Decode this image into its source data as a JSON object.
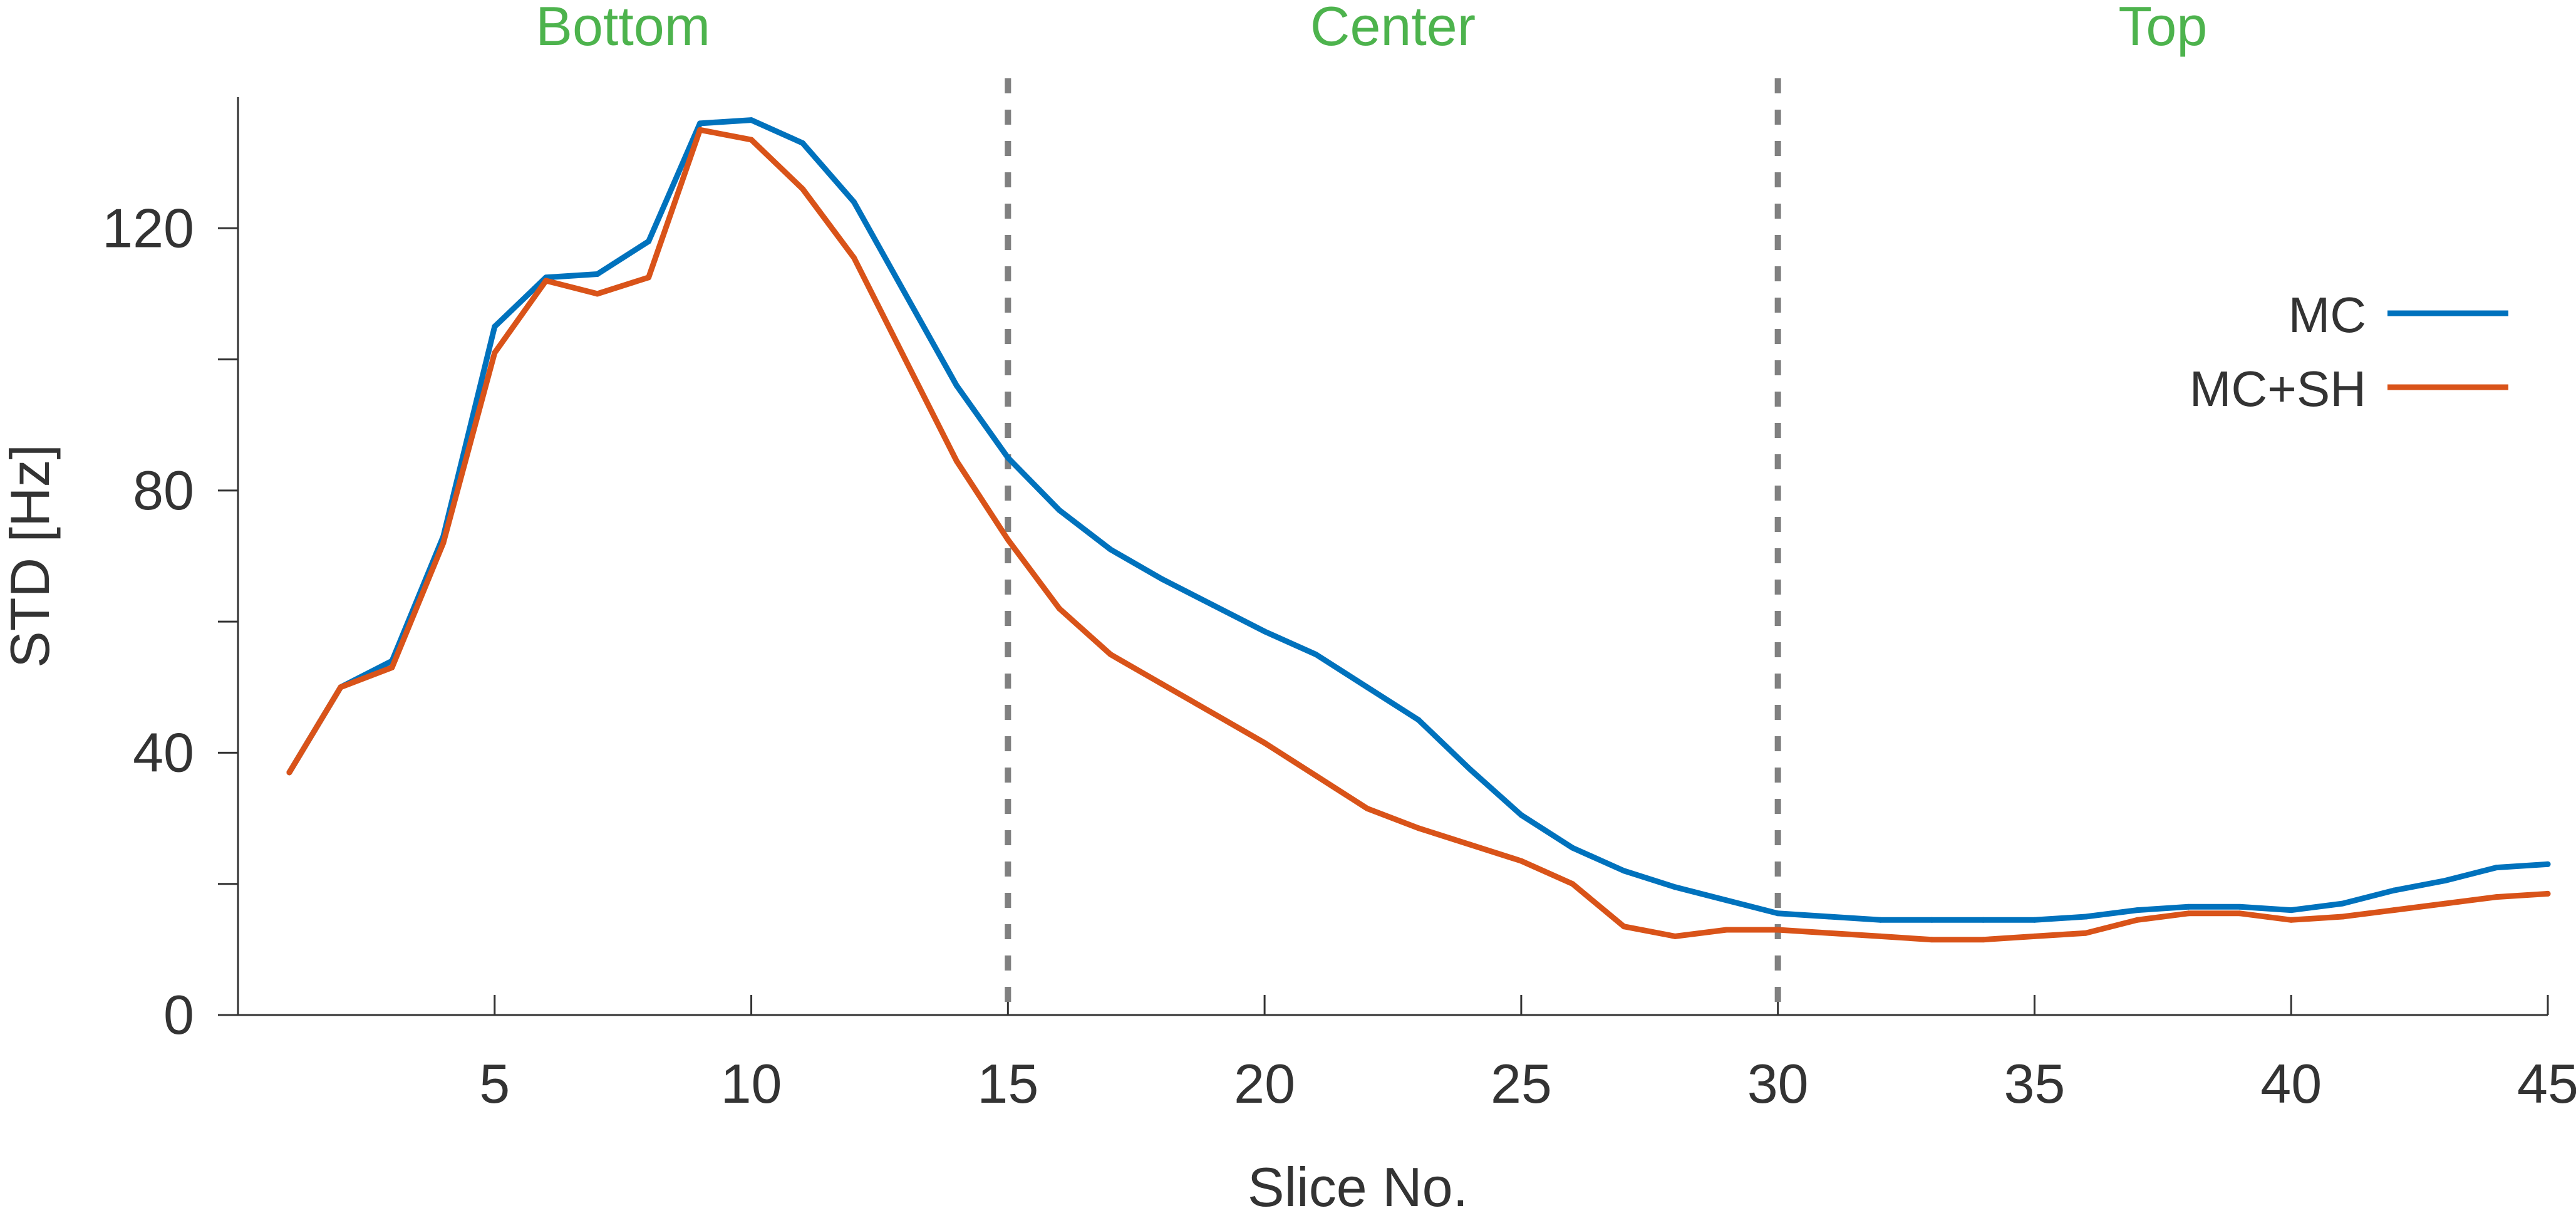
{
  "chart_data": {
    "type": "line",
    "title": "",
    "xlabel": "Slice No.",
    "ylabel": "STD [Hz]",
    "xlim": [
      0,
      45
    ],
    "ylim": [
      0,
      140
    ],
    "xticks": [
      5,
      10,
      15,
      20,
      25,
      30,
      35,
      40,
      45
    ],
    "yticks": [
      0,
      20,
      40,
      60,
      80,
      100,
      120
    ],
    "ytick_labels": [
      "0",
      "",
      "40",
      "",
      "80",
      "",
      "120"
    ],
    "grid": false,
    "legend_position": "right",
    "dividers": [
      15,
      30
    ],
    "regions": [
      {
        "label": "Bottom",
        "center": 7.5
      },
      {
        "label": "Center",
        "center": 22.5
      },
      {
        "label": "Top",
        "center": 37.5
      }
    ],
    "colors": {
      "region_label": "#4db34d",
      "divider": "#808080",
      "axis": "#333333"
    },
    "x": [
      1,
      2,
      3,
      4,
      5,
      6,
      7,
      8,
      9,
      10,
      11,
      12,
      13,
      14,
      15,
      16,
      17,
      18,
      19,
      20,
      21,
      22,
      23,
      24,
      25,
      26,
      27,
      28,
      29,
      30,
      31,
      32,
      33,
      34,
      35,
      36,
      37,
      38,
      39,
      40,
      41,
      42,
      43,
      44,
      45
    ],
    "series": [
      {
        "name": "MC",
        "color": "#0072bd",
        "values": [
          37,
          50,
          54,
          73,
          105,
          112.5,
          113,
          118,
          136,
          136.5,
          133,
          124,
          110,
          96,
          85,
          77,
          71,
          66.5,
          62.5,
          58.5,
          55,
          50,
          45,
          37.5,
          30.5,
          25.5,
          22,
          19.5,
          17.5,
          15.5,
          15,
          14.5,
          14.5,
          14.5,
          14.5,
          15,
          16,
          16.5,
          16.5,
          16,
          17,
          19,
          20.5,
          22.5,
          23
        ]
      },
      {
        "name": "MC+SH",
        "color": "#d95319",
        "values": [
          37,
          50,
          53,
          72,
          101,
          112,
          110,
          112.5,
          135,
          133.5,
          126,
          115.5,
          100,
          84.5,
          72.5,
          62,
          55,
          50.5,
          46,
          41.5,
          36.5,
          31.5,
          28.5,
          26,
          23.5,
          20,
          13.5,
          12,
          13,
          13,
          12.5,
          12,
          11.5,
          11.5,
          12,
          12.5,
          14.5,
          15.5,
          15.5,
          14.5,
          15,
          16,
          17,
          18,
          18.5
        ]
      }
    ]
  }
}
